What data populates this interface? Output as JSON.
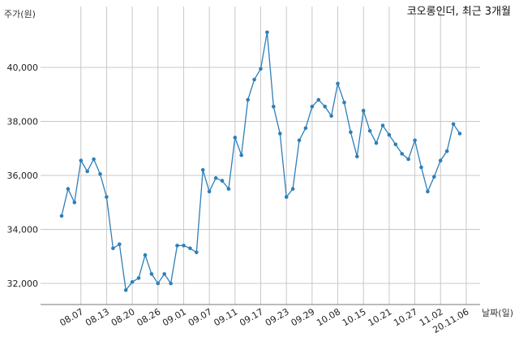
{
  "chart_data": {
    "type": "line",
    "title": "코오롱인더, 최근 3개월",
    "ylabel": "주가(원)",
    "xlabel": "날짜(일)",
    "ylim": [
      31200,
      41800
    ],
    "yticks": [
      32000,
      34000,
      36000,
      38000,
      40000
    ],
    "ytick_labels": [
      "32,000",
      "34,000",
      "36,000",
      "38,000",
      "40,000"
    ],
    "xtick_labels": [
      "08.07",
      "08.13",
      "08.20",
      "08.26",
      "09.01",
      "09.07",
      "09.11",
      "09.17",
      "09.23",
      "09.29",
      "10.08",
      "10.15",
      "10.21",
      "10.27",
      "11.02",
      "20.11.06"
    ],
    "xtick_index": [
      3,
      7,
      11,
      15,
      19,
      23,
      27,
      31,
      35,
      39,
      43,
      47,
      51,
      55,
      59,
      63
    ],
    "grid": true,
    "line_color": "#2e7fb8",
    "series": [
      {
        "values": [
          34500,
          35500,
          35000,
          36550,
          36150,
          36600,
          36050,
          35200,
          33300,
          33450,
          31750,
          32050,
          32200,
          33050,
          32350,
          32000,
          32350,
          32000,
          33400,
          33400,
          33300,
          33150,
          36200,
          35400,
          35900,
          35800,
          35500,
          37400,
          36750,
          38800,
          39550,
          39950,
          41300,
          38550,
          37550,
          35200,
          35500,
          37300,
          37750,
          38550,
          38800,
          38550,
          38200,
          39400,
          38700,
          37600,
          36700,
          38400,
          37650,
          37200,
          37850,
          37500,
          37150,
          36800,
          36600,
          37300,
          36300,
          35400,
          35950,
          36550,
          36900,
          37900,
          37550
        ]
      }
    ]
  }
}
